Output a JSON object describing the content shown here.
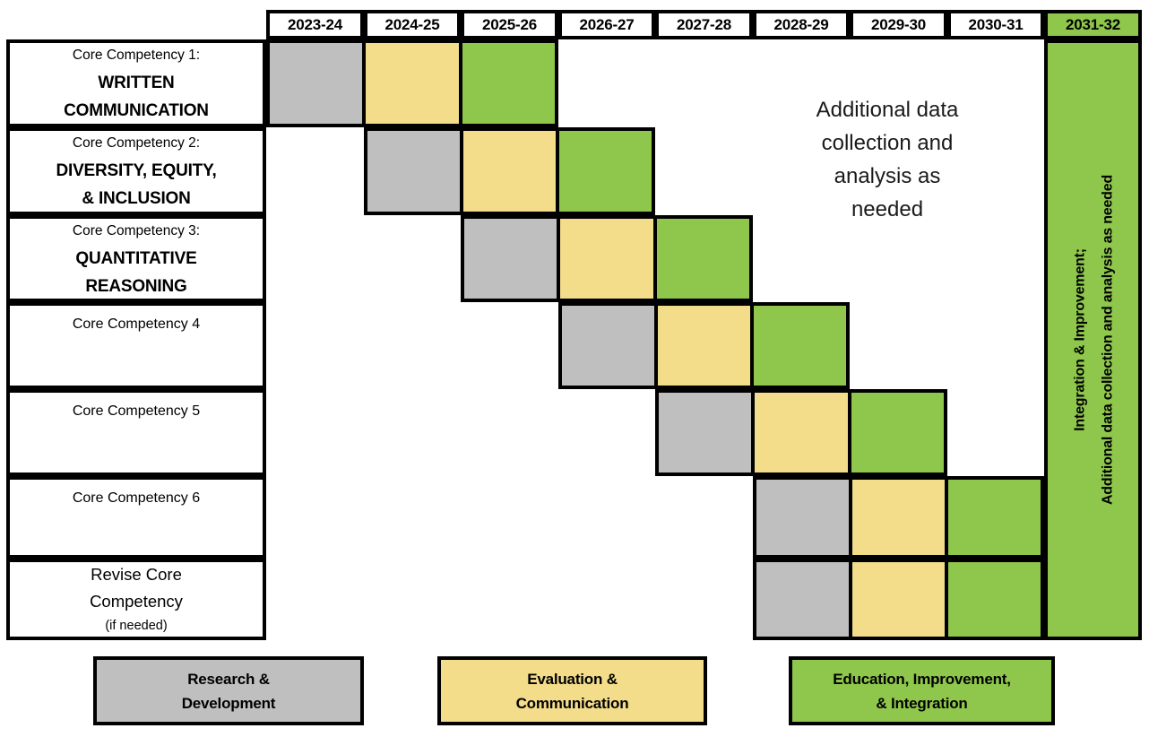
{
  "chart_data": {
    "type": "gantt",
    "columns": [
      "2023-24",
      "2024-25",
      "2025-26",
      "2026-27",
      "2027-28",
      "2028-29",
      "2029-30",
      "2030-31",
      "2031-32"
    ],
    "highlight_column": "2031-32",
    "rows": [
      {
        "label": "Core Competency 1:",
        "sublabel": "WRITTEN\nCOMMUNICATION",
        "phases": {
          "2023-24": "research",
          "2024-25": "evaluation",
          "2025-26": "education"
        }
      },
      {
        "label": "Core Competency 2:",
        "sublabel": "DIVERSITY, EQUITY,\n& INCLUSION",
        "phases": {
          "2024-25": "research",
          "2025-26": "evaluation",
          "2026-27": "education"
        }
      },
      {
        "label": "Core Competency 3:",
        "sublabel": "QUANTITATIVE\nREASONING",
        "phases": {
          "2025-26": "research",
          "2026-27": "evaluation",
          "2027-28": "education"
        }
      },
      {
        "label": "Core Competency 4",
        "phases": {
          "2026-27": "research",
          "2027-28": "evaluation",
          "2028-29": "education"
        }
      },
      {
        "label": "Core Competency 5",
        "phases": {
          "2027-28": "research",
          "2028-29": "evaluation",
          "2029-30": "education"
        }
      },
      {
        "label": "Core Competency 6",
        "phases": {
          "2028-29": "research",
          "2029-30": "evaluation",
          "2030-31": "education"
        }
      },
      {
        "label": "Revise Core\nCompetency",
        "note": "(if needed)",
        "phases": {
          "2028-29": "research",
          "2029-30": "evaluation",
          "2030-31": "education"
        }
      }
    ],
    "annotation": "Additional data\ncollection and\nanalysis as\nneeded",
    "strip_label_line1": "Integration & Improvement;",
    "strip_label_line2": "Additional data collection and analysis as needed",
    "legend": [
      {
        "key": "research",
        "label": "Research &\nDevelopment",
        "color": "#BFBFBF"
      },
      {
        "key": "evaluation",
        "label": "Evaluation &\nCommunication",
        "color": "#F3DC8A"
      },
      {
        "key": "education",
        "label": "Education, Improvement,\n& Integration",
        "color": "#8EC74B"
      }
    ],
    "colors": {
      "border": "#000000",
      "highlight": "#8EC74B",
      "background": "#FFFFFF"
    }
  }
}
